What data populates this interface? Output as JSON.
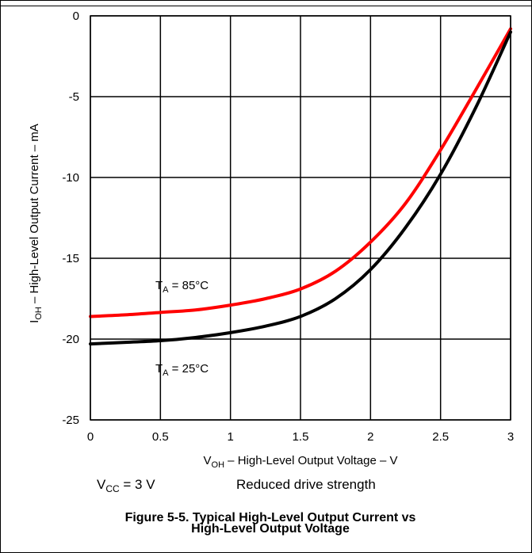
{
  "chart_data": {
    "type": "line",
    "xlabel": {
      "main": "V",
      "sub": "OH",
      "rest": " – High-Level Output Voltage – V"
    },
    "ylabel": {
      "main": "I",
      "sub": "OH",
      "rest": " – High-Level Output Current – mA"
    },
    "xlim": [
      0,
      3
    ],
    "ylim": [
      -25,
      0
    ],
    "x_ticks": [
      "0",
      "0.5",
      "1",
      "1.5",
      "2",
      "2.5",
      "3"
    ],
    "y_ticks": [
      "0",
      "-5",
      "-10",
      "-15",
      "-20",
      "-25"
    ],
    "grid": true,
    "series": [
      {
        "name": "TA = 85°C",
        "color": "#ff0000",
        "x": [
          0,
          0.25,
          0.5,
          0.75,
          1.0,
          1.25,
          1.5,
          1.75,
          2.0,
          2.25,
          2.5,
          2.75,
          3.0
        ],
        "y": [
          -18.6,
          -18.5,
          -18.35,
          -18.2,
          -17.9,
          -17.5,
          -16.9,
          -15.8,
          -14.0,
          -11.6,
          -8.3,
          -4.6,
          -0.8
        ]
      },
      {
        "name": "TA = 25°C",
        "color": "#000000",
        "x": [
          0,
          0.25,
          0.5,
          0.75,
          1.0,
          1.25,
          1.5,
          1.75,
          2.0,
          2.25,
          2.5,
          2.75,
          3.0
        ],
        "y": [
          -20.3,
          -20.2,
          -20.1,
          -19.9,
          -19.6,
          -19.2,
          -18.6,
          -17.5,
          -15.7,
          -13.1,
          -9.8,
          -5.7,
          -1.0
        ]
      }
    ],
    "annotations": [
      {
        "main": "T",
        "sub": "A",
        "rest": " = 85°C"
      },
      {
        "main": "T",
        "sub": "A",
        "rest": " = 25°C"
      }
    ],
    "conditions": {
      "vcc": {
        "main": "V",
        "sub": "CC",
        "rest": " = 3 V"
      },
      "drive": "Reduced drive strength"
    },
    "caption": {
      "line1": "Figure 5-5. Typical High-Level Output Current vs",
      "line2": "High-Level Output Voltage"
    }
  }
}
